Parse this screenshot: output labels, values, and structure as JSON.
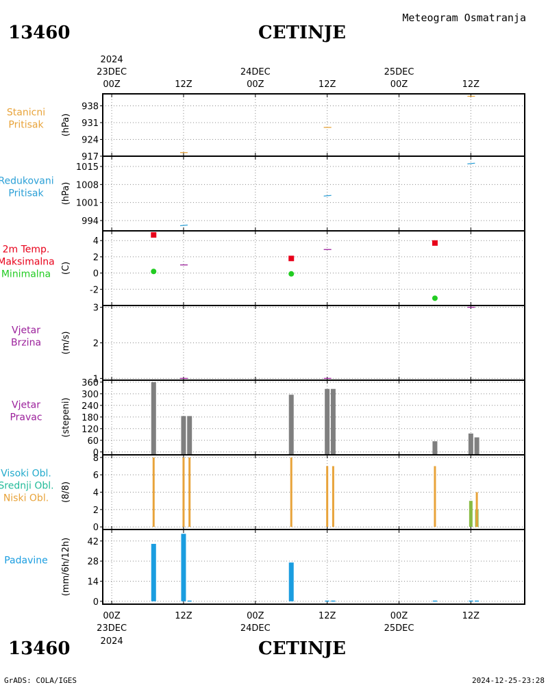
{
  "header": {
    "station_id": "13460",
    "station_name": "CETINJE",
    "product": "Meteogram Osmatranja"
  },
  "footer": {
    "credit": "GrADS: COLA/IGES",
    "timestamp": "2024-12-25-23:28"
  },
  "time_axis": {
    "year": "2024",
    "ticks": [
      {
        "h": 0,
        "label": "00Z",
        "date": "23DEC"
      },
      {
        "h": 12,
        "label": "12Z",
        "date": ""
      },
      {
        "h": 24,
        "label": "00Z",
        "date": "24DEC"
      },
      {
        "h": 36,
        "label": "12Z",
        "date": ""
      },
      {
        "h": 48,
        "label": "00Z",
        "date": "25DEC"
      },
      {
        "h": 60,
        "label": "12Z",
        "date": ""
      }
    ],
    "range_hours": [
      -1.5,
      69
    ]
  },
  "colors": {
    "pressure": "#e8a33a",
    "reduced": "#2a9fd6",
    "tmax": "#e8001a",
    "tmin": "#22cc22",
    "wind": "#9b1f9b",
    "dirbar": "#7f7f7f",
    "cloud_low": "#e8a33a",
    "cloud_mid": "#22bb99",
    "cloud_high": "#22aacc",
    "precip": "#1a9de0",
    "green": "#88bb44"
  },
  "chart_data": [
    {
      "type": "line",
      "id": "station_pressure",
      "side_labels": [
        "Stanicni",
        "Pritisak"
      ],
      "label_color": "#e8a33a",
      "ylabel": "(hPa)",
      "ylim": [
        917,
        943
      ],
      "yticks": [
        917,
        924,
        931,
        938
      ],
      "points": [
        {
          "h": 12,
          "v": 918.5
        },
        {
          "h": 36,
          "v": 929
        },
        {
          "h": 60,
          "v": 942
        }
      ]
    },
    {
      "type": "line",
      "id": "reduced_pressure",
      "side_labels": [
        "Redukovani",
        "Pritisak"
      ],
      "label_color": "#2a9fd6",
      "ylabel": "(hPa)",
      "ylim": [
        990,
        1019
      ],
      "yticks": [
        994,
        1001,
        1008,
        1015
      ],
      "points": [
        {
          "h": 12,
          "v": 992
        },
        {
          "h": 36,
          "v": 1003.5
        },
        {
          "h": 60,
          "v": 1016
        }
      ]
    },
    {
      "type": "scatter",
      "id": "temperature",
      "side_labels": [
        "2m Temp.",
        "Maksimalna",
        "Minimalna"
      ],
      "label_colors": [
        "#e8001a",
        "#e8001a",
        "#22cc22"
      ],
      "ylabel": "(C)",
      "ylim": [
        -4,
        5.2
      ],
      "yticks": [
        -2,
        0,
        2,
        4
      ],
      "max": [
        {
          "h": 7,
          "v": 4.7
        },
        {
          "h": 30,
          "v": 1.8
        },
        {
          "h": 54,
          "v": 3.7
        }
      ],
      "min": [
        {
          "h": 7,
          "v": 0.2
        },
        {
          "h": 30,
          "v": -0.1
        },
        {
          "h": 54,
          "v": -3.1
        }
      ],
      "current": [
        {
          "h": 12,
          "v": 1.0
        },
        {
          "h": 36,
          "v": 2.9
        }
      ]
    },
    {
      "type": "line",
      "id": "wind_speed",
      "side_labels": [
        "Vjetar",
        "Brzina"
      ],
      "label_color": "#9b1f9b",
      "ylabel": "(m/s)",
      "ylim": [
        0.95,
        3.05
      ],
      "yticks": [
        1,
        2,
        3
      ],
      "points": [
        {
          "h": 12,
          "v": 1
        },
        {
          "h": 36,
          "v": 1
        },
        {
          "h": 60,
          "v": 3
        }
      ]
    },
    {
      "type": "bar",
      "id": "wind_direction",
      "side_labels": [
        "Vjetar",
        "Pravac"
      ],
      "label_color": "#9b1f9b",
      "ylabel": "(stepeni)",
      "ylim": [
        -15,
        370
      ],
      "yticks": [
        0,
        60,
        120,
        180,
        240,
        300,
        360
      ],
      "bars": [
        {
          "h": 7,
          "v": 360
        },
        {
          "h": 12,
          "v": 185
        },
        {
          "h": 13,
          "v": 185
        },
        {
          "h": 30,
          "v": 295
        },
        {
          "h": 36,
          "v": 325
        },
        {
          "h": 37,
          "v": 325
        },
        {
          "h": 54,
          "v": 55
        },
        {
          "h": 60,
          "v": 95
        },
        {
          "h": 61,
          "v": 75
        }
      ]
    },
    {
      "type": "bar",
      "id": "clouds",
      "side_labels": [
        "Visoki Obl.",
        "Srednji Obl.",
        "Niski Obl."
      ],
      "label_colors": [
        "#22aacc",
        "#22bb99",
        "#e8a33a"
      ],
      "ylabel": "(8/8)",
      "ylim": [
        -0.3,
        8.3
      ],
      "yticks": [
        0,
        2,
        4,
        6,
        8
      ],
      "low": [
        {
          "h": 7,
          "v": 8
        },
        {
          "h": 12,
          "v": 8
        },
        {
          "h": 13,
          "v": 8
        },
        {
          "h": 30,
          "v": 8
        },
        {
          "h": 36,
          "v": 7
        },
        {
          "h": 37,
          "v": 7
        },
        {
          "h": 54,
          "v": 7
        },
        {
          "h": 61,
          "v": 4
        }
      ],
      "green": [
        {
          "h": 60,
          "v": 3
        },
        {
          "h": 61,
          "v": 2
        }
      ]
    },
    {
      "type": "bar",
      "id": "precipitation",
      "side_labels": [
        "Padavine"
      ],
      "label_color": "#1a9de0",
      "ylabel": "(mm/6h/12h)",
      "ylim": [
        -2,
        50
      ],
      "yticks": [
        0,
        14,
        28,
        42
      ],
      "bars": [
        {
          "h": 7,
          "v": 40
        },
        {
          "h": 12,
          "v": 47
        },
        {
          "h": 30,
          "v": 27
        },
        {
          "h": 13,
          "v": 0.5
        },
        {
          "h": 36,
          "v": 0.5
        },
        {
          "h": 37,
          "v": 0.5
        },
        {
          "h": 54,
          "v": 0.5
        },
        {
          "h": 60,
          "v": 0.5
        },
        {
          "h": 61,
          "v": 0.5
        }
      ]
    }
  ]
}
